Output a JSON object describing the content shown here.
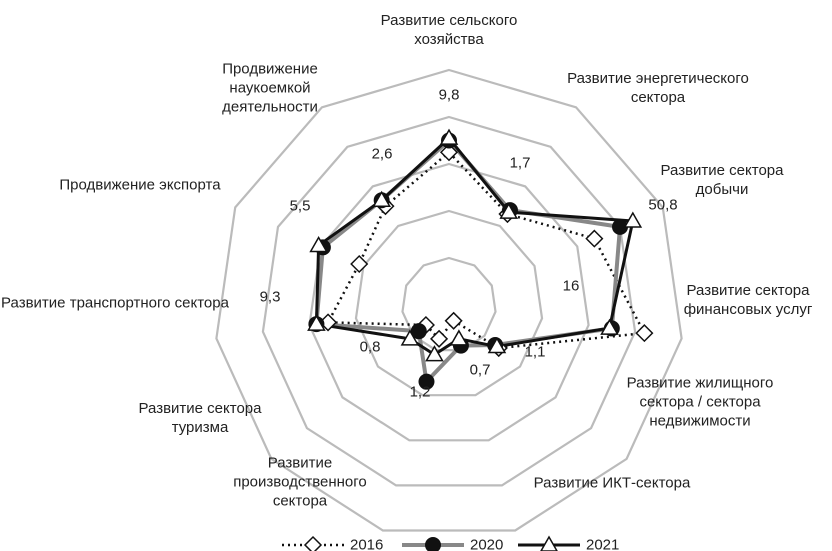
{
  "chart_data": {
    "type": "radar",
    "categories": [
      "Развитие сельского хозяйства",
      "Развитие энергетического сектора",
      "Развитие сектора добычи",
      "Развитие сектора финансовых услуг",
      "Развитие жилищного сектора / сектора недвижимости",
      "Развитие ИКТ-сектора",
      "Развитие производственного сектора",
      "Развитие сектора туризма",
      "Развитие транспортного сектора",
      "Продвижение экспорта",
      "Продвижение наукоемкой деятельности"
    ],
    "series": [
      {
        "name": "2016",
        "color": "#111111",
        "values": [
          3.25,
          2.3,
          3.4,
          4.2,
          1.4,
          0.35,
          0.75,
          0.65,
          2.6,
          2.1,
          2.5
        ]
      },
      {
        "name": "2020",
        "color": "#888888",
        "values": [
          3.5,
          2.4,
          4.0,
          3.5,
          1.3,
          0.9,
          1.7,
          0.85,
          2.85,
          2.95,
          2.65
        ]
      },
      {
        "name": "2021",
        "color": "#111111",
        "values": [
          3.55,
          2.35,
          4.3,
          3.45,
          1.35,
          0.75,
          1.1,
          1.1,
          2.85,
          3.05,
          2.65
        ]
      }
    ],
    "annotations": [
      "9,8",
      "1,7",
      "50,8",
      "16",
      "1,1",
      "0,7",
      "1,2",
      "0,8",
      "9,3",
      "5,5",
      "2,6"
    ],
    "rlim": [
      0,
      5
    ],
    "rticks": [
      1,
      2,
      3,
      4,
      5
    ],
    "grid": true,
    "legend": "bottom"
  }
}
